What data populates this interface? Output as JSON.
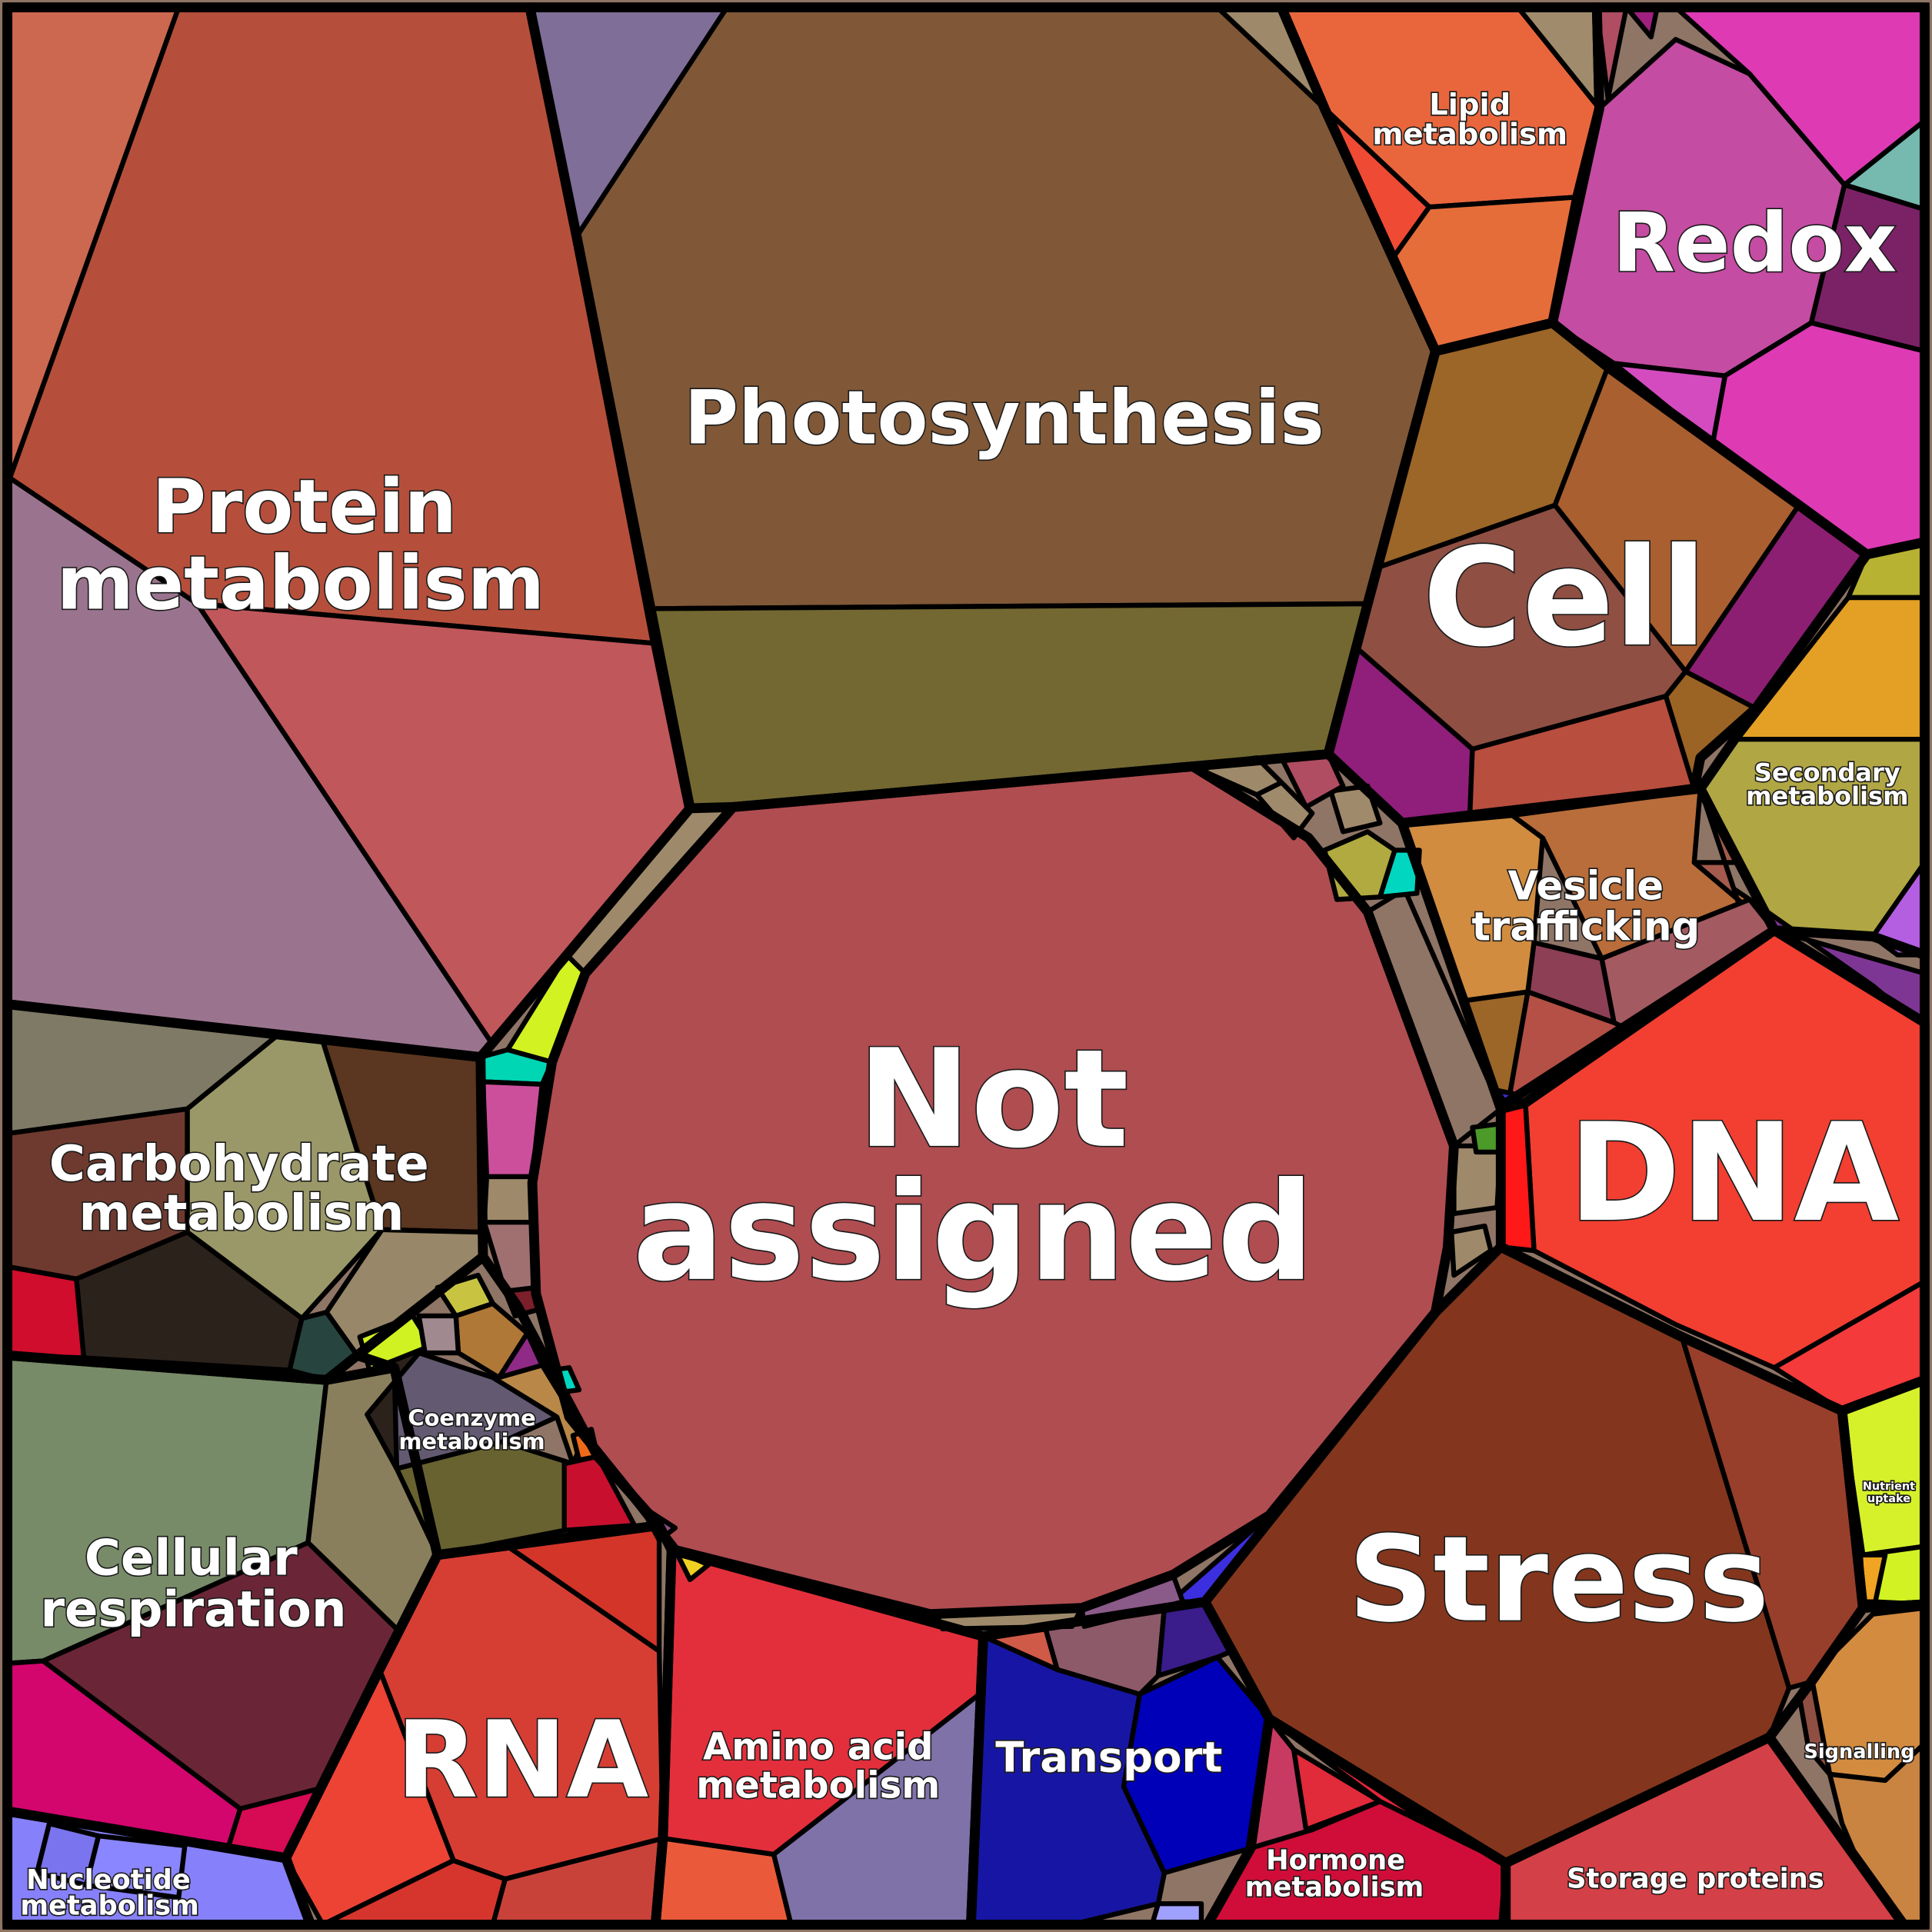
{
  "labels": {
    "photosynthesis": "Photosynthesis",
    "protein_metabolism_1": "Protein",
    "protein_metabolism_2": "metabolism",
    "lipid_metabolism_1": "Lipid",
    "lipid_metabolism_2": "metabolism",
    "redox": "Redox",
    "cell": "Cell",
    "secondary_metabolism_1": "Secondary",
    "secondary_metabolism_2": "metabolism",
    "vesicle_trafficking_1": "Vesicle",
    "vesicle_trafficking_2": "trafficking",
    "not_assigned_1": "Not",
    "not_assigned_2": "assigned",
    "dna": "DNA",
    "carbohydrate_metabolism_1": "Carbohydrate",
    "carbohydrate_metabolism_2": "metabolism",
    "coenzyme_metabolism_1": "Coenzyme",
    "coenzyme_metabolism_2": "metabolism",
    "nutrient_uptake_1": "Nutrient",
    "nutrient_uptake_2": "uptake",
    "stress": "Stress",
    "cellular_respiration_1": "Cellular",
    "cellular_respiration_2": "respiration",
    "signalling": "Signalling",
    "rna": "RNA",
    "amino_acid_metabolism_1": "Amino acid",
    "amino_acid_metabolism_2": "metabolism",
    "transport": "Transport",
    "hormone_metabolism_1": "Hormone",
    "hormone_metabolism_2": "metabolism",
    "storage_proteins": "Storage proteins",
    "nucleotide_metabolism_1": "Nucleotide",
    "nucleotide_metabolism_2": "metabolism"
  },
  "colors": {
    "photosynthesis": "#805837",
    "photosynthesis_b": "#736831",
    "protein_metabolism": "#b54f3b",
    "protein_metabolism_b": "#c0575b",
    "protein_metabolism_c": "#9a748e",
    "lipid_metabolism": "#e9663d",
    "redox": "#c44ca2",
    "redox_b": "#de3ab4",
    "cell": "#8f4f43",
    "cell_b": "#9b6628",
    "dna": "#f23f31",
    "not_assigned": "#b04d51",
    "stress": "#83361d",
    "rna": "#d63e34",
    "amino_acid_metabolism": "#e32f3c",
    "transport": "#1716a4",
    "hormone_metabolism": "#d00d38",
    "storage_proteins": "#d44047",
    "carbohydrate_metabolism": "#7e7a65",
    "cellular_respiration": "#788b69",
    "nucleotide_metabolism": "#8680fa",
    "coenzyme_metabolism": "#635a72",
    "vesicle_trafficking": "#d18c40",
    "secondary_metabolism": "#b0a644",
    "nutrient_uptake": "#d6f12a",
    "signalling": "#d38b3f"
  }
}
